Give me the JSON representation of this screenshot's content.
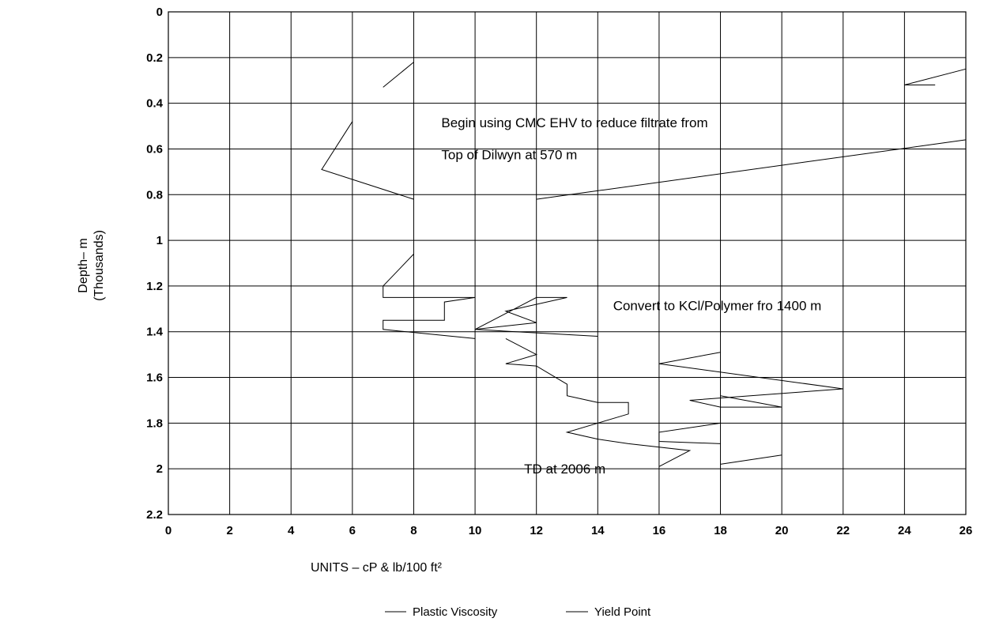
{
  "chart_data": {
    "type": "line",
    "xlabel": "UNITS – cP & lb/100 ft²",
    "ylabel": "Depth– m",
    "ylabel_sub": "(Thousands)",
    "xlim": [
      0,
      26
    ],
    "ylim": [
      0,
      2.2
    ],
    "y_inverted": true,
    "grid": true,
    "legend_position": "bottom",
    "x_ticks": [
      "0",
      "2",
      "4",
      "6",
      "8",
      "10",
      "12",
      "14",
      "16",
      "18",
      "20",
      "22",
      "24",
      "26"
    ],
    "y_ticks": [
      "0",
      "0.2",
      "0.4",
      "0.6",
      "0.8",
      "1",
      "1.2",
      "1.4",
      "1.6",
      "1.8",
      "2",
      "2.2"
    ],
    "annotations": [
      {
        "text": "Begin using CMC EHV to reduce filtrate from",
        "x": 8.9,
        "y": 0.505
      },
      {
        "text": "Top of Dilwyn at 570 m",
        "x": 8.9,
        "y": 0.645
      },
      {
        "text": "Convert to KCl/Polymer fro 1400 m",
        "x": 14.5,
        "y": 1.305
      },
      {
        "text": "TD at 2006 m",
        "x": 11.6,
        "y": 2.02
      }
    ],
    "series": [
      {
        "name": "Plastic Viscosity",
        "segments": [
          [
            [
              8,
              0.22
            ],
            [
              7,
              0.33
            ]
          ],
          [
            [
              6,
              0.48
            ],
            [
              5,
              0.69
            ],
            [
              8,
              0.82
            ]
          ],
          [
            [
              8,
              1.06
            ],
            [
              7,
              1.2
            ],
            [
              7,
              1.25
            ],
            [
              10,
              1.25
            ],
            [
              9,
              1.27
            ],
            [
              9,
              1.35
            ],
            [
              7,
              1.35
            ],
            [
              7,
              1.39
            ],
            [
              10,
              1.43
            ]
          ],
          [
            [
              11,
              1.43
            ],
            [
              12,
              1.5
            ],
            [
              11,
              1.54
            ],
            [
              12,
              1.55
            ],
            [
              13,
              1.63
            ],
            [
              13,
              1.68
            ],
            [
              14,
              1.71
            ],
            [
              15,
              1.71
            ],
            [
              15,
              1.76
            ],
            [
              13,
              1.84
            ],
            [
              14,
              1.87
            ],
            [
              15,
              1.89
            ],
            [
              17,
              1.92
            ],
            [
              16,
              1.99
            ]
          ]
        ]
      },
      {
        "name": "Yield Point",
        "segments": [
          [
            [
              26,
              0.25
            ],
            [
              24,
              0.32
            ],
            [
              25,
              0.32
            ]
          ],
          [
            [
              26,
              0.56
            ],
            [
              12,
              0.82
            ]
          ],
          [
            [
              10,
              1.39
            ],
            [
              12,
              1.25
            ],
            [
              13,
              1.25
            ],
            [
              11,
              1.31
            ],
            [
              12,
              1.36
            ],
            [
              10,
              1.39
            ],
            [
              14,
              1.42
            ]
          ],
          [
            [
              18,
              1.49
            ],
            [
              16,
              1.54
            ],
            [
              22,
              1.65
            ],
            [
              17,
              1.7
            ],
            [
              18,
              1.73
            ],
            [
              20,
              1.73
            ],
            [
              18,
              1.68
            ]
          ],
          [
            [
              18,
              1.8
            ],
            [
              16,
              1.84
            ],
            [
              16,
              1.88
            ],
            [
              18,
              1.89
            ]
          ],
          [
            [
              20,
              1.94
            ],
            [
              18,
              1.98
            ]
          ]
        ]
      }
    ]
  }
}
